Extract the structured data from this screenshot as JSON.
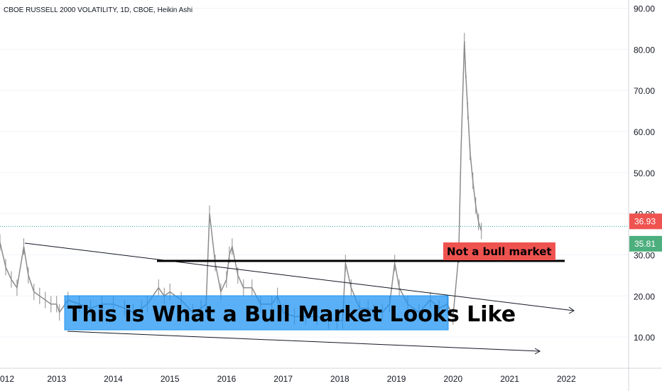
{
  "header": {
    "title": "CBOE RUSSELL 2000 VOLATILITY, 1D, CBOE, Heikin Ashi"
  },
  "colors": {
    "candle": "#8c8c8c",
    "accent_blue": "#2196f3",
    "badge_red": "#ef5350",
    "badge_green": "#4caf7d",
    "black": "#000000",
    "grid": "#f0f3fa"
  },
  "chart_data": {
    "type": "line",
    "title": "CBOE RUSSELL 2000 VOLATILITY, 1D, CBOE, Heikin Ashi",
    "xlabel": "",
    "ylabel": "",
    "x_ticks": [
      "012",
      "2013",
      "2014",
      "2015",
      "2016",
      "2017",
      "2018",
      "2019",
      "2020",
      "2021",
      "2022"
    ],
    "x_tick_years": [
      2012.0,
      2013.0,
      2014.0,
      2015.0,
      2016.0,
      2017.0,
      2018.0,
      2019.0,
      2020.0,
      2021.0,
      2022.0
    ],
    "y_ticks": [
      "10.00",
      "20.00",
      "30.00",
      "40.00",
      "50.00",
      "60.00",
      "70.00",
      "80.00",
      "90.00"
    ],
    "y_tick_values": [
      10,
      20,
      30,
      40,
      50,
      60,
      70,
      80,
      90
    ],
    "xlim": [
      2012.0,
      2023.1
    ],
    "ylim": [
      2.4,
      92.0
    ],
    "grid": false,
    "series": [
      {
        "x": [
          2012.0,
          2012.1,
          2012.2,
          2012.3,
          2012.42,
          2012.5,
          2012.6,
          2012.7,
          2012.8,
          2012.9,
          2013.0,
          2013.05,
          2013.2,
          2013.4,
          2013.6,
          2013.8,
          2014.0,
          2014.2,
          2014.35,
          2014.5,
          2014.6,
          2014.8,
          2014.9,
          2015.0,
          2015.2,
          2015.4,
          2015.55,
          2015.64,
          2015.7,
          2015.8,
          2015.9,
          2016.0,
          2016.05,
          2016.1,
          2016.2,
          2016.3,
          2016.45,
          2016.6,
          2016.8,
          2016.9,
          2017.0,
          2017.2,
          2017.4,
          2017.6,
          2017.8,
          2017.95,
          2018.05,
          2018.1,
          2018.2,
          2018.35,
          2018.5,
          2018.6,
          2018.75,
          2018.88,
          2018.97,
          2019.05,
          2019.2,
          2019.4,
          2019.6,
          2019.75,
          2019.9,
          2020.0,
          2020.1,
          2020.14,
          2020.2,
          2020.22,
          2020.26,
          2020.3,
          2020.35,
          2020.4,
          2020.45,
          2020.5
        ],
        "values": [
          33,
          27,
          24,
          22,
          32,
          25,
          21,
          20,
          19,
          18,
          18,
          16,
          19,
          18,
          17,
          18,
          18,
          17,
          16,
          17,
          18,
          22,
          20,
          21,
          19,
          16,
          17,
          18,
          40,
          28,
          21,
          24,
          30,
          32,
          25,
          22,
          22,
          18,
          18,
          20,
          16,
          15,
          15,
          15,
          14,
          14,
          14,
          28,
          22,
          17,
          17,
          16,
          16,
          18,
          28,
          22,
          18,
          16,
          19,
          17,
          18,
          15,
          30,
          55,
          82,
          75,
          65,
          55,
          48,
          42,
          38,
          35.81
        ]
      }
    ],
    "price_badges": [
      {
        "value": 36.93,
        "label": "36.93",
        "color": "#ef5350"
      },
      {
        "value": 35.81,
        "label": "35.81",
        "color": "#4caf7d"
      }
    ],
    "annotations": [
      {
        "text": "This is What a Bull Market Looks Like",
        "style": "blue-box"
      },
      {
        "text": "Not a bull market",
        "style": "red-box"
      }
    ]
  }
}
